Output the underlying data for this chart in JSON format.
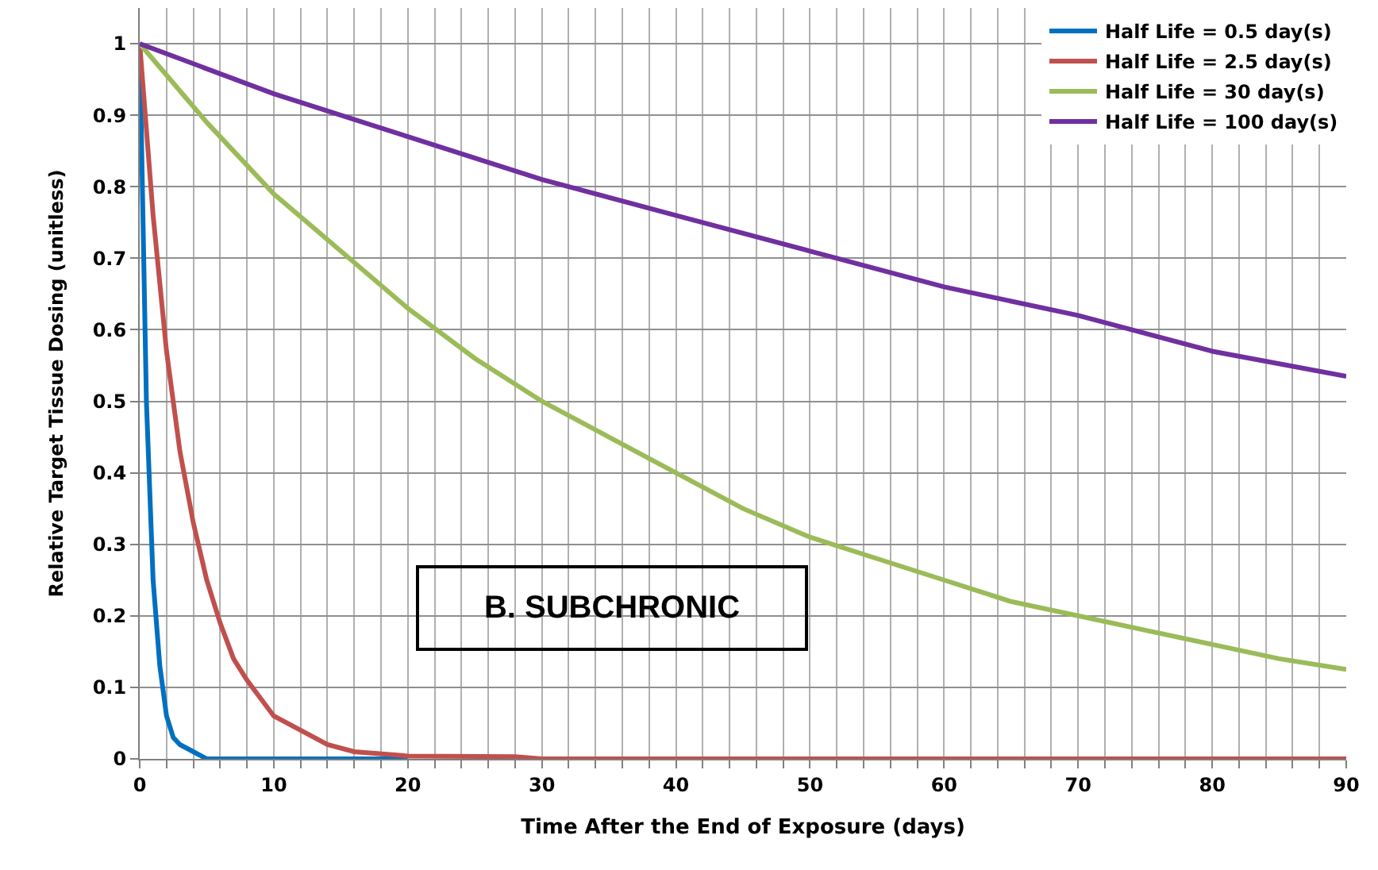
{
  "chart_data": {
    "type": "line",
    "xlabel": "Time After the End of Exposure (days)",
    "ylabel": "Relative Target Tissue Dosing (unitless)",
    "xlim": [
      0,
      90
    ],
    "ylim": [
      0,
      1.05
    ],
    "xticks": [
      0,
      {
        "value": 2,
        "label": null
      },
      {
        "value": 4,
        "label": null
      },
      {
        "value": 6,
        "label": null
      },
      {
        "value": 8,
        "label": null
      },
      10,
      {
        "value": 12,
        "label": null
      },
      {
        "value": 14,
        "label": null
      },
      {
        "value": 16,
        "label": null
      },
      {
        "value": 18,
        "label": null
      },
      20,
      {
        "value": 22,
        "label": null
      },
      {
        "value": 24,
        "label": null
      },
      {
        "value": 26,
        "label": null
      },
      {
        "value": 28,
        "label": null
      },
      30,
      {
        "value": 32,
        "label": null
      },
      {
        "value": 34,
        "label": null
      },
      {
        "value": 36,
        "label": null
      },
      {
        "value": 38,
        "label": null
      },
      40,
      {
        "value": 42,
        "label": null
      },
      {
        "value": 44,
        "label": null
      },
      {
        "value": 46,
        "label": null
      },
      {
        "value": 48,
        "label": null
      },
      50,
      {
        "value": 52,
        "label": null
      },
      {
        "value": 54,
        "label": null
      },
      {
        "value": 56,
        "label": null
      },
      {
        "value": 58,
        "label": null
      },
      60,
      {
        "value": 62,
        "label": null
      },
      {
        "value": 64,
        "label": null
      },
      {
        "value": 66,
        "label": null
      },
      {
        "value": 68,
        "label": null
      },
      70,
      {
        "value": 72,
        "label": null
      },
      {
        "value": 74,
        "label": null
      },
      {
        "value": 76,
        "label": null
      },
      {
        "value": 78,
        "label": null
      },
      80,
      {
        "value": 82,
        "label": null
      },
      {
        "value": 84,
        "label": null
      },
      {
        "value": 86,
        "label": null
      },
      {
        "value": 88,
        "label": null
      },
      90
    ],
    "yticks": [
      0,
      0.1,
      0.2,
      0.3,
      0.4,
      0.5,
      0.6,
      0.7,
      0.8,
      0.9,
      1
    ],
    "grid": true,
    "legend": "top right",
    "line_style": "solid",
    "marker": "none",
    "annotations": [
      "B. SUBCHRONIC"
    ],
    "series": [
      {
        "name": "Half Life = 0.5 day(s)",
        "color": "#0070c0",
        "x": [
          0,
          0.5,
          1,
          1.5,
          2,
          2.5,
          3,
          4,
          5,
          10,
          20
        ],
        "values": [
          1,
          0.5,
          0.25,
          0.13,
          0.06,
          0.03,
          0.02,
          0.01,
          0,
          0,
          0
        ]
      },
      {
        "name": "Half Life = 2.5 day(s)",
        "color": "#c0504d",
        "x": [
          0,
          1,
          2,
          3,
          4,
          5,
          6,
          7,
          8,
          10,
          12,
          14,
          16,
          20,
          28,
          30,
          90
        ],
        "values": [
          1,
          0.76,
          0.57,
          0.43,
          0.33,
          0.25,
          0.19,
          0.14,
          0.11,
          0.06,
          0.04,
          0.02,
          0.01,
          0.004,
          0.003,
          0,
          0
        ]
      },
      {
        "name": "Half Life = 30 day(s)",
        "color": "#9bbb59",
        "x": [
          0,
          5,
          10,
          15,
          20,
          25,
          30,
          35,
          40,
          45,
          50,
          55,
          60,
          65,
          70,
          75,
          80,
          85,
          90
        ],
        "values": [
          1,
          0.89,
          0.79,
          0.71,
          0.63,
          0.56,
          0.5,
          0.45,
          0.4,
          0.35,
          0.31,
          0.28,
          0.25,
          0.22,
          0.2,
          0.18,
          0.16,
          0.14,
          0.125
        ]
      },
      {
        "name": "Half Life = 100 day(s)",
        "color": "#7030a0",
        "x": [
          0,
          10,
          20,
          30,
          40,
          50,
          60,
          70,
          80,
          90
        ],
        "values": [
          1,
          0.93,
          0.87,
          0.81,
          0.76,
          0.71,
          0.66,
          0.62,
          0.57,
          0.535
        ]
      }
    ]
  }
}
